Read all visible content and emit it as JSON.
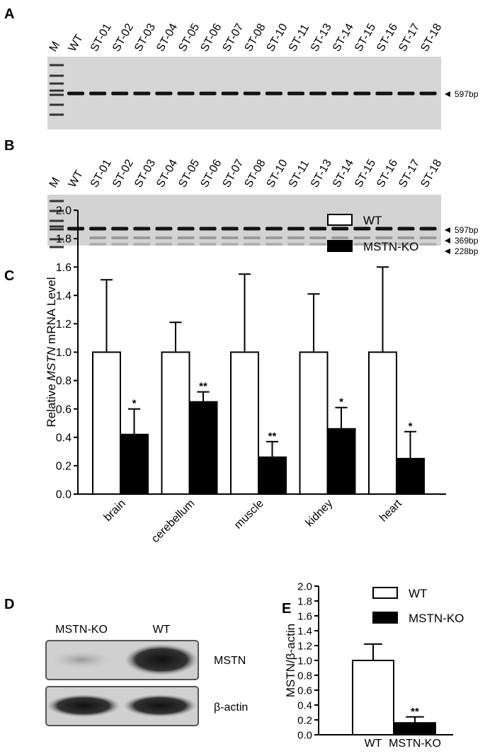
{
  "panels": {
    "letters": [
      "A",
      "B",
      "C",
      "D",
      "E"
    ],
    "gel_a": {
      "lanes": [
        "M",
        "WT",
        "ST-01",
        "ST-02",
        "ST-03",
        "ST-04",
        "ST-05",
        "ST-06",
        "ST-07",
        "ST-08",
        "ST-10",
        "ST-11",
        "ST-13",
        "ST-14",
        "ST-15",
        "ST-16",
        "ST-17",
        "ST-18"
      ],
      "bands": [
        "597bp"
      ]
    },
    "gel_b": {
      "lanes": [
        "M",
        "WT",
        "ST-01",
        "ST-02",
        "ST-03",
        "ST-04",
        "ST-05",
        "ST-06",
        "ST-07",
        "ST-08",
        "ST-10",
        "ST-11",
        "ST-13",
        "ST-14",
        "ST-15",
        "ST-16",
        "ST-17",
        "ST-18"
      ],
      "bands": [
        "597bp",
        "369bp",
        "228bp"
      ]
    },
    "blot": {
      "lanes": [
        "MSTN-KO",
        "WT"
      ],
      "rows": [
        "MSTN",
        "β-actin"
      ]
    }
  },
  "chart_data": [
    {
      "type": "bar",
      "y_label": [
        "Relative",
        "MSTN",
        "mRNA Level"
      ],
      "categories": [
        "brain",
        "cerebellum",
        "muscle",
        "kidney",
        "heart"
      ],
      "series": [
        {
          "name": "WT",
          "color": "#ffffff",
          "values": [
            1.0,
            1.0,
            1.0,
            1.0,
            1.0
          ],
          "errors": [
            0.51,
            0.21,
            0.55,
            0.41,
            0.6
          ]
        },
        {
          "name": "MSTN-KO",
          "color": "#000000",
          "values": [
            0.42,
            0.65,
            0.26,
            0.46,
            0.25
          ],
          "errors": [
            0.18,
            0.07,
            0.11,
            0.15,
            0.19
          ],
          "significance": [
            "*",
            "**",
            "**",
            "*",
            "*"
          ]
        }
      ],
      "ylim": [
        0,
        2
      ],
      "yticks": [
        {
          "value": 0,
          "label": "0.0"
        },
        0.2,
        0.4,
        0.6,
        0.8,
        {
          "value": 1,
          "label": "1.0"
        },
        1.2,
        1.4,
        1.6,
        1.8,
        {
          "value": 2,
          "label": "2.0"
        }
      ],
      "legend": "upper right"
    },
    {
      "type": "bar",
      "y_label": [
        "MSTN/β-actin"
      ],
      "categories": [
        "WT",
        "MSTN-KO"
      ],
      "series": [
        {
          "name": "WT",
          "color": "#ffffff",
          "values": [
            1.0,
            null
          ],
          "errors": [
            0.22,
            null
          ]
        },
        {
          "name": "MSTN-KO",
          "color": "#000000",
          "values": [
            null,
            0.16
          ],
          "errors": [
            null,
            0.08
          ],
          "significance": [
            null,
            "**"
          ]
        }
      ],
      "ylim": [
        0,
        2
      ],
      "yticks": [
        {
          "value": 0,
          "label": "0.0"
        },
        0.2,
        0.4,
        0.6,
        0.8,
        {
          "value": 1,
          "label": "1.0"
        },
        1.2,
        1.4,
        1.6,
        1.8,
        {
          "value": 2,
          "label": "2.0"
        }
      ],
      "legend": "upper right"
    }
  ]
}
